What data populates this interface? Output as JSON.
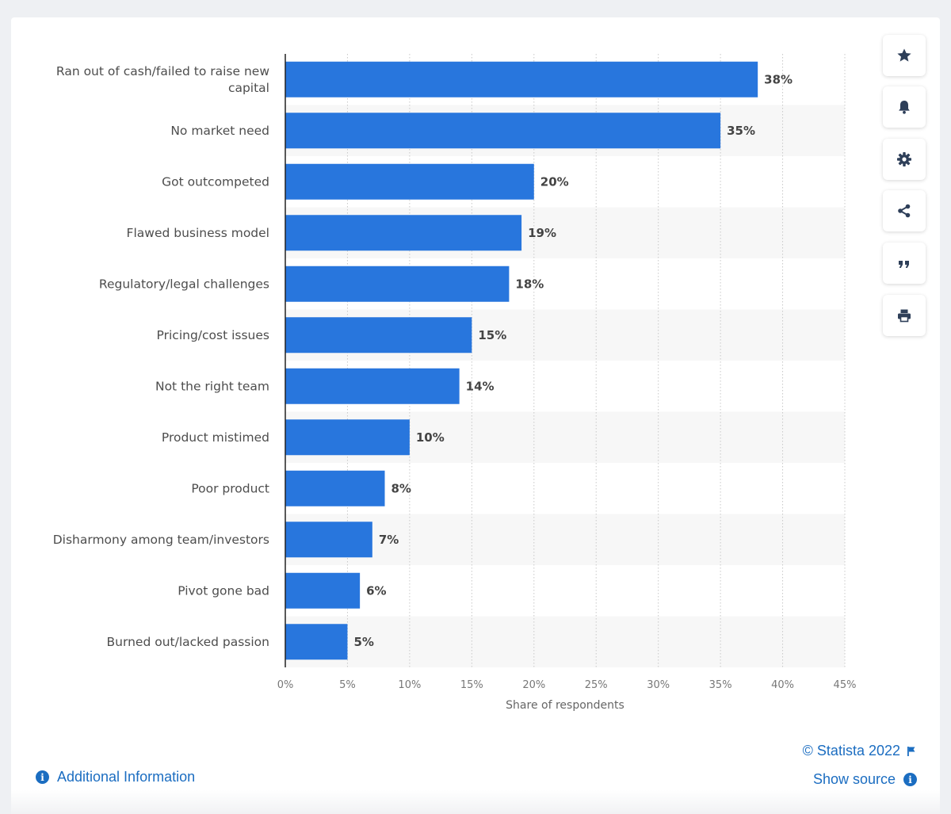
{
  "chart_data": {
    "type": "bar",
    "orientation": "horizontal",
    "categories": [
      "Ran out of cash/failed to raise new capital",
      "No market need",
      "Got outcompeted",
      "Flawed business model",
      "Regulatory/legal challenges",
      "Pricing/cost issues",
      "Not the right team",
      "Product mistimed",
      "Poor product",
      "Disharmony among team/investors",
      "Pivot gone bad",
      "Burned out/lacked passion"
    ],
    "category_lines": [
      [
        "Ran out of cash/failed to raise new",
        "capital"
      ],
      [
        "No market need"
      ],
      [
        "Got outcompeted"
      ],
      [
        "Flawed business model"
      ],
      [
        "Regulatory/legal challenges"
      ],
      [
        "Pricing/cost issues"
      ],
      [
        "Not the right team"
      ],
      [
        "Product mistimed"
      ],
      [
        "Poor product"
      ],
      [
        "Disharmony among team/investors"
      ],
      [
        "Pivot gone bad"
      ],
      [
        "Burned out/lacked passion"
      ]
    ],
    "values": [
      38,
      35,
      20,
      19,
      18,
      15,
      14,
      10,
      8,
      7,
      6,
      5
    ],
    "value_labels": [
      "38%",
      "35%",
      "20%",
      "19%",
      "18%",
      "15%",
      "14%",
      "10%",
      "8%",
      "7%",
      "6%",
      "5%"
    ],
    "xlabel": "Share of respondents",
    "xlim": [
      0,
      45
    ],
    "xticks": [
      0,
      5,
      10,
      15,
      20,
      25,
      30,
      35,
      40,
      45
    ],
    "xtick_labels": [
      "0%",
      "5%",
      "10%",
      "15%",
      "20%",
      "25%",
      "30%",
      "35%",
      "40%",
      "45%"
    ],
    "grid": "vertical dotted",
    "bar_color": "#2876dd"
  },
  "sidebar": {
    "buttons": [
      {
        "icon": "star-icon",
        "name": "favorite-button"
      },
      {
        "icon": "bell-icon",
        "name": "notification-button"
      },
      {
        "icon": "gear-icon",
        "name": "settings-button"
      },
      {
        "icon": "share-icon",
        "name": "share-button"
      },
      {
        "icon": "quote-icon",
        "name": "cite-button"
      },
      {
        "icon": "print-icon",
        "name": "print-button"
      }
    ]
  },
  "footer": {
    "credit": "© Statista 2022",
    "show_source": "Show source",
    "additional_info": "Additional Information"
  },
  "colors": {
    "accent": "#1b6dc1",
    "bar": "#2876dd",
    "icon": "#2e3f59"
  }
}
